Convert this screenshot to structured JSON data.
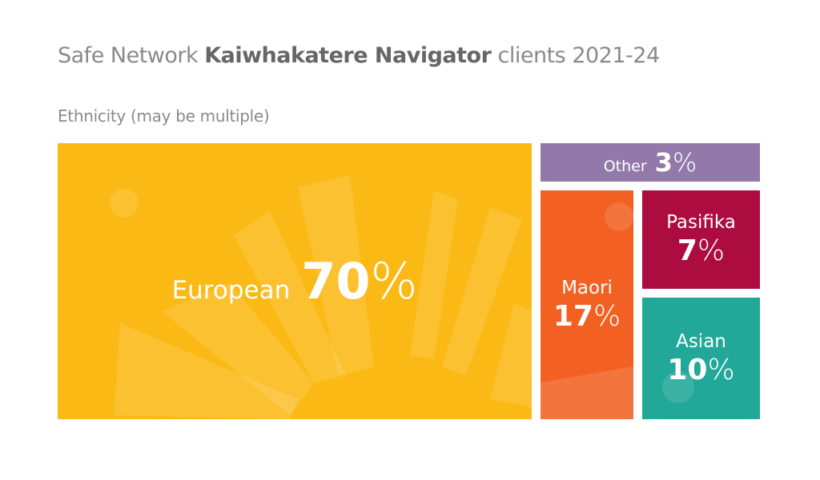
{
  "header": {
    "title_pre": "Safe Network",
    "title_strong": "Kaiwhakatere Navigator",
    "title_post": "clients 2021-24",
    "subtitle": "Ethnicity (may be multiple)"
  },
  "colors": {
    "european": "#fbb915",
    "other": "#9279aa",
    "maori": "#f26122",
    "pasifika": "#ac0c3f",
    "asian": "#21a898"
  },
  "chart_data": {
    "type": "treemap",
    "title": "Safe Network Kaiwhakatere Navigator clients 2021-24",
    "subtitle": "Ethnicity (may be multiple)",
    "unit": "%",
    "categories": [
      "European",
      "Maori",
      "Asian",
      "Pasifika",
      "Other"
    ],
    "values": [
      70,
      17,
      10,
      7,
      3
    ],
    "labels": {
      "european": {
        "name": "European",
        "value": "70",
        "unit": "%"
      },
      "other": {
        "name": "Other",
        "value": "3",
        "unit": "%"
      },
      "maori": {
        "name": "Maori",
        "value": "17",
        "unit": "%"
      },
      "pasifika": {
        "name": "Pasifika",
        "value": "7",
        "unit": "%"
      },
      "asian": {
        "name": "Asian",
        "value": "10",
        "unit": "%"
      }
    }
  }
}
